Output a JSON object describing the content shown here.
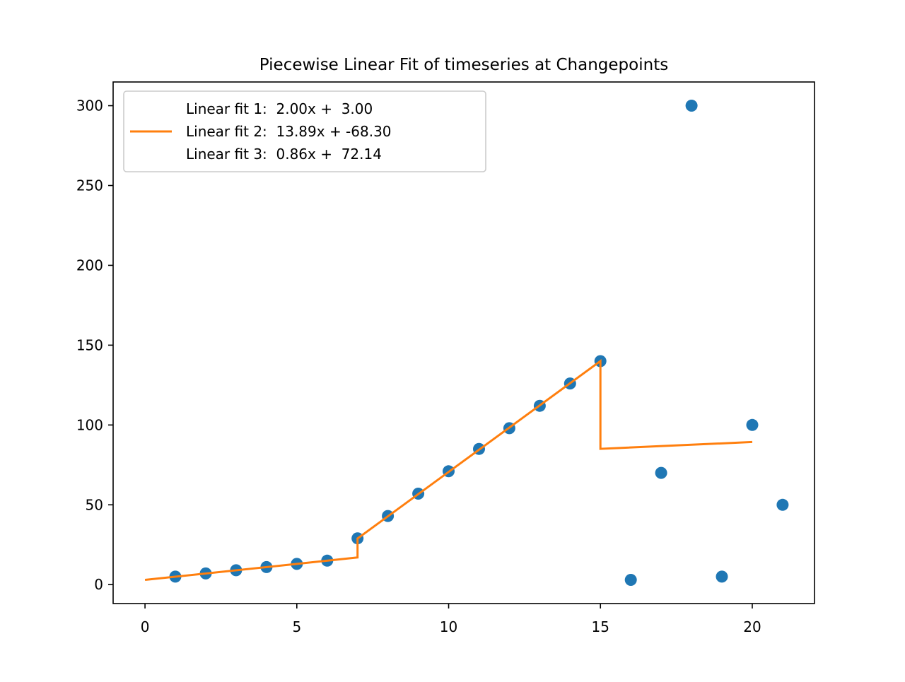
{
  "chart_data": {
    "type": "scatter",
    "title": "Piecewise Linear Fit of timeseries at Changepoints",
    "xlabel": "",
    "ylabel": "",
    "xlim": [
      -1.05,
      22.05
    ],
    "ylim": [
      -11.85,
      314.85
    ],
    "xticks": [
      0,
      5,
      10,
      15,
      20
    ],
    "yticks": [
      0,
      50,
      100,
      150,
      200,
      250,
      300
    ],
    "grid": false,
    "legend_position": "upper left",
    "scatter": {
      "x": [
        1,
        2,
        3,
        4,
        5,
        6,
        7,
        8,
        9,
        10,
        11,
        12,
        13,
        14,
        15,
        16,
        17,
        18,
        19,
        20,
        21
      ],
      "y": [
        5,
        7,
        9,
        11,
        13,
        15,
        29,
        43,
        57,
        71,
        85,
        98,
        112,
        126,
        140,
        3,
        70,
        300,
        5,
        100,
        50
      ]
    },
    "fit_line": {
      "x": [
        0,
        7,
        7,
        15,
        15,
        20
      ],
      "y": [
        3.0,
        17.0,
        28.93,
        140.05,
        85.04,
        89.34
      ]
    },
    "legend": [
      "Linear fit 1:  2.00x +  3.00",
      "Linear fit 2:  13.89x + -68.30",
      "Linear fit 3:  0.86x +  72.14"
    ],
    "colors": {
      "points": "#1f77b4",
      "fit": "#ff7f0e"
    }
  }
}
